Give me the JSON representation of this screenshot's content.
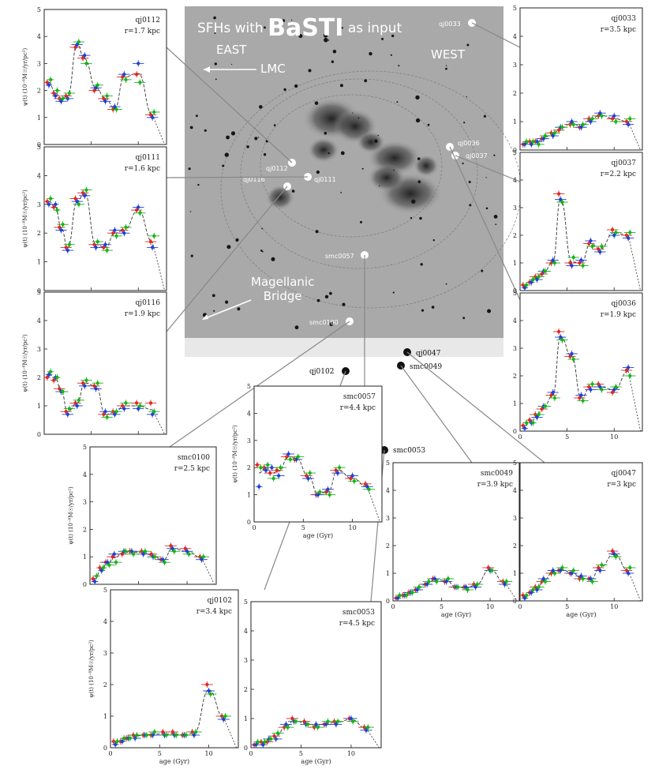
{
  "header": {
    "title_prefix": "SFHs with",
    "title_brand": "BaSTI",
    "title_suffix": "as input",
    "east_label": "EAST",
    "west_label": "WEST",
    "lmc_label": "LMC",
    "bridge_label_line1": "Magellanic",
    "bridge_label_line2": "Bridge"
  },
  "map_labels": [
    "qj0112",
    "qj0111",
    "qj0116",
    "smc0057",
    "smc0100",
    "qj0036",
    "qj0037",
    "qj0033"
  ],
  "outside_labels": [
    "qj0102",
    "qj0047",
    "smc0049",
    "smc0053"
  ],
  "colors": {
    "red": "#e0281e",
    "blue": "#1f3fd8",
    "green": "#16b416",
    "model": "#333333",
    "connector": "#888888"
  },
  "chart_data": [
    {
      "type": "line",
      "name": "qj0112",
      "radius": "r=1.7 kpc",
      "ylabel": "ψ(t) (10⁻⁸M☉/yr/pc²)",
      "xlim": [
        0,
        13
      ],
      "ylim": [
        0,
        5
      ],
      "x": [
        0.5,
        1.2,
        1.8,
        2.5,
        3.5,
        4.3,
        5.5,
        6.5,
        7.5,
        8.5,
        10,
        11.5
      ],
      "series": [
        {
          "name": "red",
          "values": [
            2.3,
            1.9,
            1.7,
            1.8,
            3.6,
            3.2,
            2.0,
            1.7,
            1.3,
            2.5,
            2.6,
            1.1
          ]
        },
        {
          "name": "blue",
          "values": [
            2.2,
            1.8,
            1.6,
            1.7,
            3.7,
            3.3,
            2.1,
            1.6,
            1.4,
            2.6,
            3.0,
            1.0
          ]
        },
        {
          "name": "green",
          "values": [
            2.4,
            2.0,
            1.7,
            1.9,
            3.8,
            3.0,
            2.2,
            1.8,
            1.3,
            2.4,
            2.3,
            1.2
          ]
        }
      ]
    },
    {
      "type": "line",
      "name": "qj0111",
      "radius": "r=1.6 kpc",
      "ylabel": "ψ(t) (10⁻⁸M☉/yr/pc²)",
      "xlim": [
        0,
        13
      ],
      "ylim": [
        0,
        5
      ],
      "x": [
        0.5,
        1.2,
        1.8,
        2.5,
        3.5,
        4.3,
        5.5,
        6.5,
        7.5,
        8.5,
        10,
        11.5
      ],
      "series": [
        {
          "name": "red",
          "values": [
            3.1,
            2.9,
            2.2,
            1.5,
            3.2,
            3.4,
            1.6,
            1.5,
            2.0,
            2.1,
            2.8,
            1.7
          ]
        },
        {
          "name": "blue",
          "values": [
            3.0,
            3.0,
            2.1,
            1.4,
            3.1,
            3.3,
            1.5,
            1.6,
            2.1,
            2.0,
            2.9,
            1.5
          ]
        },
        {
          "name": "green",
          "values": [
            3.2,
            2.8,
            2.3,
            1.6,
            3.0,
            3.5,
            1.7,
            1.4,
            1.9,
            2.2,
            2.7,
            1.9
          ]
        }
      ]
    },
    {
      "type": "line",
      "name": "qj0116",
      "radius": "r=1.9 kpc",
      "ylabel": "ψ(t) (10⁻⁸M☉/yr/pc²)",
      "xlim": [
        0,
        13
      ],
      "ylim": [
        0,
        5
      ],
      "x": [
        0.5,
        1.2,
        1.8,
        2.5,
        3.5,
        4.3,
        5.5,
        6.5,
        7.5,
        8.5,
        10,
        11.5
      ],
      "series": [
        {
          "name": "red",
          "values": [
            2.0,
            1.9,
            1.6,
            0.8,
            1.1,
            1.8,
            1.7,
            0.7,
            0.8,
            1.0,
            1.1,
            1.1
          ]
        },
        {
          "name": "blue",
          "values": [
            2.1,
            2.0,
            1.5,
            0.7,
            1.0,
            1.7,
            1.6,
            0.8,
            0.7,
            0.9,
            0.9,
            0.7
          ]
        },
        {
          "name": "green",
          "values": [
            2.2,
            2.0,
            1.5,
            0.9,
            1.2,
            1.9,
            1.8,
            0.6,
            0.8,
            1.1,
            1.0,
            0.8
          ]
        }
      ]
    },
    {
      "type": "line",
      "name": "qj0033",
      "radius": "r=3.5 kpc",
      "ylabel": "",
      "xlim": [
        0,
        13
      ],
      "ylim": [
        0,
        5
      ],
      "x": [
        0.5,
        1.2,
        1.8,
        2.5,
        3.5,
        4.3,
        5.5,
        6.5,
        7.5,
        8.5,
        10,
        11.5
      ],
      "series": [
        {
          "name": "red",
          "values": [
            0.2,
            0.3,
            0.3,
            0.4,
            0.6,
            0.7,
            0.9,
            0.8,
            1.1,
            1.2,
            1.1,
            1.0
          ]
        },
        {
          "name": "blue",
          "values": [
            0.2,
            0.2,
            0.3,
            0.4,
            0.5,
            0.8,
            1.0,
            0.8,
            1.0,
            1.3,
            1.2,
            0.9
          ]
        },
        {
          "name": "green",
          "values": [
            0.3,
            0.3,
            0.2,
            0.5,
            0.6,
            0.8,
            0.9,
            0.9,
            1.1,
            1.2,
            1.0,
            1.1
          ]
        }
      ]
    },
    {
      "type": "line",
      "name": "qj0037",
      "radius": "r=2.2 kpc",
      "ylabel": "",
      "xlim": [
        0,
        13
      ],
      "ylim": [
        0,
        5
      ],
      "x": [
        0.5,
        1.2,
        1.8,
        2.5,
        3.5,
        4.3,
        5.5,
        6.5,
        7.5,
        8.5,
        10,
        11.5
      ],
      "series": [
        {
          "name": "red",
          "values": [
            0.2,
            0.3,
            0.5,
            0.6,
            1.0,
            3.5,
            1.0,
            1.0,
            1.7,
            1.5,
            2.2,
            2.0
          ]
        },
        {
          "name": "blue",
          "values": [
            0.1,
            0.3,
            0.4,
            0.7,
            1.1,
            3.3,
            0.9,
            1.1,
            1.8,
            1.4,
            2.0,
            1.9
          ]
        },
        {
          "name": "green",
          "values": [
            0.2,
            0.4,
            0.5,
            0.7,
            1.0,
            3.2,
            1.2,
            0.9,
            1.6,
            1.6,
            2.1,
            2.1
          ]
        }
      ]
    },
    {
      "type": "line",
      "name": "qj0036",
      "radius": "r=1.9 kpc",
      "ylabel": "",
      "xlim": [
        0,
        13
      ],
      "ylim": [
        0,
        5
      ],
      "x": [
        0.5,
        1.2,
        1.8,
        2.5,
        3.5,
        4.3,
        5.5,
        6.5,
        7.5,
        8.5,
        10,
        11.5
      ],
      "series": [
        {
          "name": "red",
          "values": [
            0.2,
            0.4,
            0.6,
            0.8,
            1.3,
            3.6,
            2.7,
            1.2,
            1.6,
            1.7,
            1.4,
            2.2
          ]
        },
        {
          "name": "blue",
          "values": [
            0.1,
            0.3,
            0.5,
            0.9,
            1.4,
            3.4,
            2.8,
            1.3,
            1.5,
            1.6,
            1.5,
            2.3
          ]
        },
        {
          "name": "green",
          "values": [
            0.3,
            0.3,
            0.6,
            0.9,
            1.2,
            3.3,
            2.6,
            1.1,
            1.7,
            1.5,
            1.6,
            2.0
          ]
        }
      ]
    },
    {
      "type": "line",
      "name": "smc0057",
      "radius": "r=4.4 kpc",
      "ylabel": "ψ(t) (10⁻⁸M☉/yr/pc²)",
      "xlabel": "age (Gyr)",
      "xlim": [
        0,
        13
      ],
      "ylim": [
        0,
        5
      ],
      "x": [
        0.5,
        1.2,
        1.8,
        2.5,
        3.5,
        4.3,
        5.5,
        6.5,
        7.5,
        8.5,
        10,
        11.5
      ],
      "series": [
        {
          "name": "red",
          "values": [
            2.1,
            2.0,
            1.8,
            1.9,
            2.4,
            2.3,
            1.7,
            1.0,
            1.1,
            1.9,
            1.6,
            1.4
          ]
        },
        {
          "name": "blue",
          "values": [
            1.3,
            1.9,
            2.0,
            1.7,
            2.5,
            2.3,
            1.6,
            1.0,
            1.2,
            1.8,
            1.7,
            1.3
          ]
        },
        {
          "name": "green",
          "values": [
            2.0,
            2.1,
            1.6,
            2.0,
            2.3,
            2.4,
            1.8,
            1.1,
            1.0,
            2.0,
            1.5,
            1.2
          ]
        }
      ]
    },
    {
      "type": "line",
      "name": "smc0100",
      "radius": "r=2.5 kpc",
      "ylabel": "ψ(t) (10⁻⁸M☉/yr/pc²)",
      "xlabel": "age (Gyr)",
      "xlim": [
        0,
        13
      ],
      "ylim": [
        0,
        5
      ],
      "x": [
        0.5,
        1.2,
        1.8,
        2.5,
        3.5,
        4.3,
        5.5,
        6.5,
        7.5,
        8.5,
        10,
        11.5
      ],
      "series": [
        {
          "name": "red",
          "values": [
            0.2,
            0.6,
            0.8,
            1.0,
            1.1,
            1.2,
            1.2,
            1.1,
            0.9,
            1.4,
            1.3,
            1.0
          ]
        },
        {
          "name": "blue",
          "values": [
            0.1,
            0.5,
            0.8,
            1.1,
            1.2,
            1.2,
            1.1,
            1.0,
            0.9,
            1.3,
            1.2,
            0.9
          ]
        },
        {
          "name": "green",
          "values": [
            0.3,
            0.6,
            0.7,
            0.8,
            1.2,
            1.1,
            1.2,
            1.0,
            0.8,
            1.2,
            1.1,
            1.0
          ]
        }
      ]
    },
    {
      "type": "line",
      "name": "qj0102",
      "radius": "r=3.4 kpc",
      "ylabel": "ψ(t) (10⁻⁸M☉/yr/pc²)",
      "xlabel": "age (Gyr)",
      "xlim": [
        0,
        13
      ],
      "ylim": [
        0,
        5
      ],
      "x": [
        0.5,
        1.2,
        1.8,
        2.5,
        3.5,
        4.3,
        5.5,
        6.5,
        7.5,
        8.5,
        10,
        11.5
      ],
      "series": [
        {
          "name": "red",
          "values": [
            0.2,
            0.2,
            0.3,
            0.4,
            0.4,
            0.4,
            0.5,
            0.5,
            0.4,
            0.5,
            2.0,
            1.0
          ]
        },
        {
          "name": "blue",
          "values": [
            0.1,
            0.2,
            0.3,
            0.3,
            0.4,
            0.4,
            0.4,
            0.4,
            0.4,
            0.4,
            1.8,
            0.9
          ]
        },
        {
          "name": "green",
          "values": [
            0.2,
            0.3,
            0.3,
            0.4,
            0.4,
            0.5,
            0.4,
            0.4,
            0.4,
            0.5,
            1.7,
            1.0
          ]
        }
      ]
    },
    {
      "type": "line",
      "name": "smc0053",
      "radius": "r=4.5 kpc",
      "ylabel": "",
      "xlabel": "age (Gyr)",
      "xlim": [
        0,
        13
      ],
      "ylim": [
        0,
        5
      ],
      "x": [
        0.5,
        1.2,
        1.8,
        2.5,
        3.5,
        4.3,
        5.5,
        6.5,
        7.5,
        8.5,
        10,
        11.5
      ],
      "series": [
        {
          "name": "red",
          "values": [
            0.1,
            0.2,
            0.2,
            0.4,
            0.7,
            1.0,
            0.9,
            0.7,
            0.8,
            0.9,
            1.0,
            0.7
          ]
        },
        {
          "name": "blue",
          "values": [
            0.1,
            0.1,
            0.3,
            0.3,
            0.8,
            0.9,
            0.8,
            0.8,
            0.8,
            0.8,
            1.0,
            0.6
          ]
        },
        {
          "name": "green",
          "values": [
            0.2,
            0.2,
            0.3,
            0.5,
            0.7,
            0.9,
            0.8,
            0.7,
            0.9,
            0.9,
            0.9,
            0.7
          ]
        }
      ]
    },
    {
      "type": "line",
      "name": "smc0049",
      "radius": "r=3.9 kpc",
      "ylabel": "",
      "xlabel": "age (Gyr)",
      "xlim": [
        0,
        13
      ],
      "ylim": [
        0,
        5
      ],
      "x": [
        0.5,
        1.2,
        1.8,
        2.5,
        3.5,
        4.3,
        5.5,
        6.5,
        7.5,
        8.5,
        10,
        11.5
      ],
      "series": [
        {
          "name": "red",
          "values": [
            0.1,
            0.2,
            0.3,
            0.4,
            0.6,
            0.8,
            0.7,
            0.5,
            0.5,
            0.6,
            1.2,
            0.7
          ]
        },
        {
          "name": "blue",
          "values": [
            0.1,
            0.2,
            0.3,
            0.4,
            0.6,
            0.8,
            0.7,
            0.5,
            0.5,
            0.5,
            1.1,
            0.6
          ]
        },
        {
          "name": "green",
          "values": [
            0.2,
            0.2,
            0.3,
            0.5,
            0.7,
            0.7,
            0.8,
            0.5,
            0.4,
            0.6,
            1.1,
            0.7
          ]
        }
      ]
    },
    {
      "type": "line",
      "name": "qj0047",
      "radius": "r=3 kpc",
      "ylabel": "",
      "xlabel": "age (Gyr)",
      "xlim": [
        0,
        13
      ],
      "ylim": [
        0,
        5
      ],
      "x": [
        0.5,
        1.2,
        1.8,
        2.5,
        3.5,
        4.3,
        5.5,
        6.5,
        7.5,
        8.5,
        10,
        11.5
      ],
      "series": [
        {
          "name": "red",
          "values": [
            0.2,
            0.3,
            0.5,
            0.7,
            1.0,
            1.1,
            1.0,
            0.8,
            0.8,
            1.2,
            1.8,
            1.1
          ]
        },
        {
          "name": "blue",
          "values": [
            0.1,
            0.3,
            0.4,
            0.8,
            1.1,
            1.1,
            1.0,
            0.9,
            0.8,
            1.1,
            1.7,
            1.0
          ]
        },
        {
          "name": "green",
          "values": [
            0.2,
            0.4,
            0.5,
            0.7,
            1.0,
            1.2,
            1.1,
            0.8,
            0.7,
            1.3,
            1.6,
            1.2
          ]
        }
      ]
    }
  ]
}
